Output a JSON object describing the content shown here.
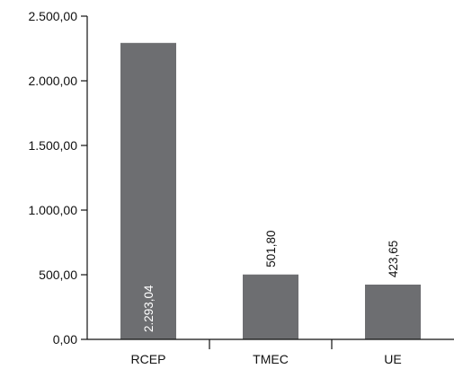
{
  "chart_data": {
    "type": "bar",
    "title": "",
    "xlabel": "",
    "ylabel": "",
    "categories": [
      "RCEP",
      "TMEC",
      "UE"
    ],
    "values": [
      2293.04,
      501.8,
      423.65
    ],
    "data_labels": [
      "2.293,04",
      "501,80",
      "423,65"
    ],
    "ylim": [
      0,
      2500
    ],
    "yticks": [
      0,
      500,
      1000,
      1500,
      2000,
      2500
    ],
    "ytick_labels": [
      "0,00",
      "500,00",
      "1.000,00",
      "1.500,00",
      "2.000,00",
      "2.500,00"
    ],
    "grid": false,
    "legend": "none",
    "bar_color": "#6d6e71",
    "label_inside_bar_color": "#ffffff",
    "label_outside_bar_color": "#111111"
  }
}
